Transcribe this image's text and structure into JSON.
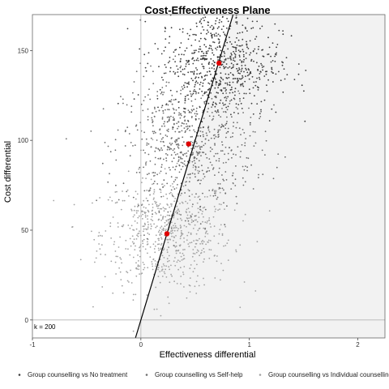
{
  "chart_data": {
    "type": "scatter",
    "title": "Cost-Effectiveness Plane",
    "xlabel": "Effectiveness differential",
    "ylabel": "Cost differential",
    "xlim": [
      -1,
      2.25
    ],
    "ylim": [
      -10,
      170
    ],
    "x_ticks": [
      -1,
      0,
      1,
      2
    ],
    "y_ticks": [
      0,
      50,
      100,
      150
    ],
    "x_tick_labels": [
      "-1",
      "0",
      "1",
      "2"
    ],
    "y_tick_labels": [
      "0",
      "50",
      "100",
      "150"
    ],
    "grid": false,
    "legend_position": "bottom",
    "willingness_to_pay": 200,
    "wtp_label": "k = 200",
    "series": [
      {
        "name": "Group counselling vs No treatment",
        "color": "#3d3d3d",
        "mean": [
          0.72,
          143
        ],
        "spread": [
          0.28,
          15
        ],
        "n": 700
      },
      {
        "name": "Group counselling vs Self-help",
        "color": "#6e6e6e",
        "mean": [
          0.44,
          98
        ],
        "spread": [
          0.3,
          18
        ],
        "n": 700
      },
      {
        "name": "Group counselling vs Individual counselling",
        "color": "#a3a3a3",
        "mean": [
          0.24,
          48
        ],
        "spread": [
          0.3,
          16
        ],
        "n": 700
      }
    ],
    "mean_points": [
      {
        "x": 0.72,
        "y": 143
      },
      {
        "x": 0.44,
        "y": 98
      },
      {
        "x": 0.24,
        "y": 48
      }
    ],
    "mean_color": "#e00000",
    "sustainable_region_color": "#f2f2f2"
  }
}
